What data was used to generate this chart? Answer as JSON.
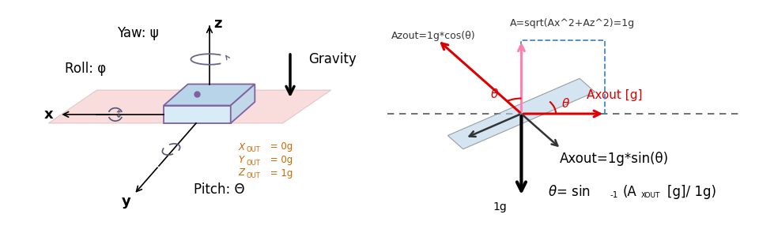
{
  "bg_color": "#ffffff",
  "left_panel": {
    "box_color": "#c8dff0",
    "box_top_color": "#b8d4e8",
    "box_front_color": "#d8ecf8",
    "box_right_color": "#c0d8e8",
    "box_edge_color": "#8060a0",
    "plane_color": "#f5c0c0",
    "plane_alpha": 0.55,
    "yaw_label": "Yaw: ψ",
    "roll_label": "Roll: φ",
    "pitch_label": "Pitch: Θ",
    "gravity_label": "Gravity",
    "out_color": "#cc6600",
    "axis_label_fontsize": 13,
    "label_fontsize": 12
  },
  "right_panel": {
    "theta_deg": 35,
    "azout_cos_label": "Azout=1g*cos(θ)",
    "a_label": "A=sqrt(Ax^2+Az^2)=1g",
    "axout_label": "Axout [g]",
    "axout_sin_label": "Axout=1g*sin(θ)",
    "one_g_label": "1g",
    "dashed_box_color": "#4488cc",
    "board_color": "#b8d4e8",
    "pink_arrow_color": "#ff80b0",
    "red_color": "#dd0000",
    "black_color": "#000000",
    "gray_color": "#333333"
  }
}
